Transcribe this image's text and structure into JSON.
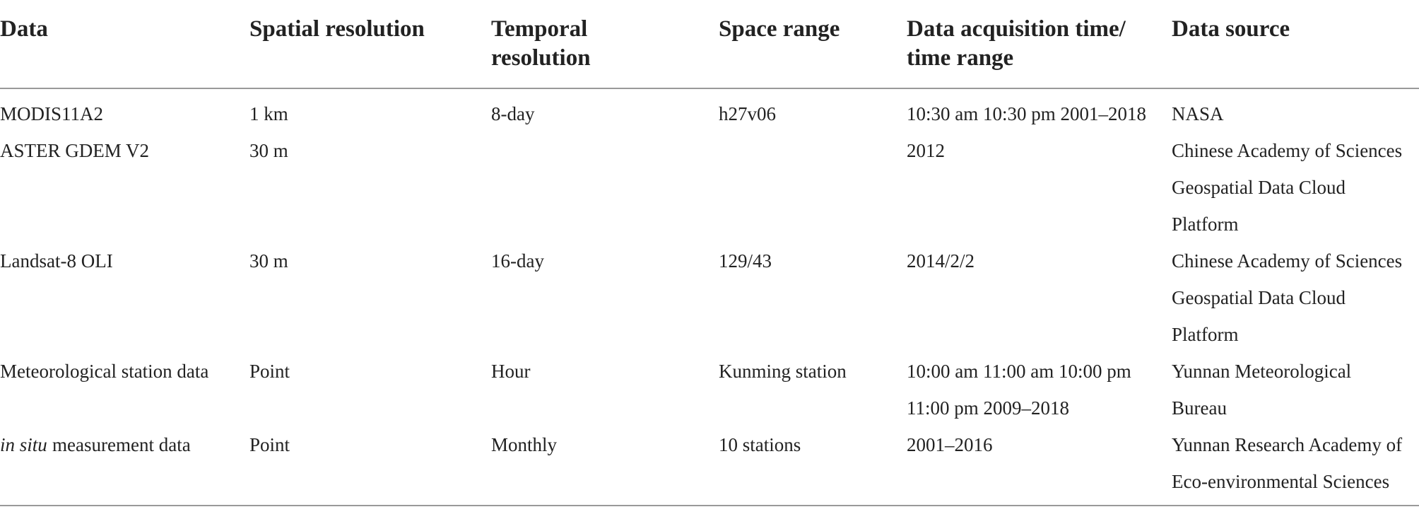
{
  "table": {
    "header": [
      [
        "Data"
      ],
      [
        "Spatial resolution"
      ],
      [
        "Temporal",
        "resolution"
      ],
      [
        "Space range"
      ],
      [
        "Data acquisition time/",
        "time range"
      ],
      [
        "Data source"
      ]
    ],
    "rows": [
      [
        [
          "MODIS11A2"
        ],
        [
          "1 km"
        ],
        [
          "8-day"
        ],
        [
          "h27v06"
        ],
        [
          "10:30 am 10:30 pm 2001–2018"
        ],
        [
          "NASA"
        ]
      ],
      [
        [
          "ASTER GDEM V2"
        ],
        [
          "30 m"
        ],
        [],
        [],
        [
          "2012"
        ],
        [
          "Chinese Academy of Sciences",
          "Geospatial Data Cloud",
          "Platform"
        ]
      ],
      [
        [
          "Landsat-8 OLI"
        ],
        [
          "30 m"
        ],
        [
          "16-day"
        ],
        [
          "129/43"
        ],
        [
          "2014/2/2"
        ],
        [
          "Chinese Academy of Sciences",
          "Geospatial Data Cloud",
          "Platform"
        ]
      ],
      [
        [
          "Meteorological station data"
        ],
        [
          "Point"
        ],
        [
          "Hour"
        ],
        [
          "Kunming station"
        ],
        [
          "10:00 am 11:00 am 10:00 pm",
          "11:00 pm 2009–2018"
        ],
        [
          "Yunnan Meteorological",
          "Bureau"
        ]
      ],
      [
        [
          {
            "italic": "in situ",
            "text": "measurement data"
          }
        ],
        [
          "Point"
        ],
        [
          "Monthly"
        ],
        [
          "10 stations"
        ],
        [
          "2001–2016"
        ],
        [
          "Yunnan Research Academy of",
          "Eco-environmental Sciences"
        ]
      ]
    ]
  }
}
